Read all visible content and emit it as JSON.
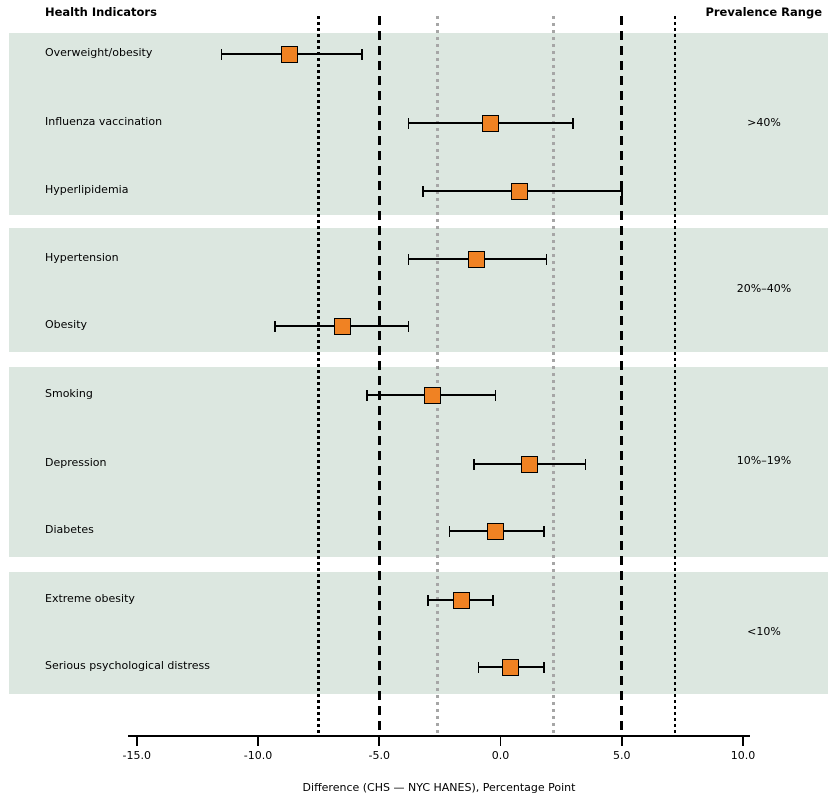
{
  "header": {
    "left": "Health Indicators",
    "right": "Prevalence Range"
  },
  "colors": {
    "band": "#dce7e0",
    "marker_fill": "#f08223",
    "marker_border": "#000000",
    "black_line": "#000000",
    "gray_line": "#a6a6a6"
  },
  "chart_data": {
    "type": "scatter",
    "subtype": "forest-plot-with-error-bars",
    "xlabel": "Difference (CHS — NYC HANES), Percentage Point",
    "xlim": [
      -15.0,
      10.0
    ],
    "x_ticks": [
      -15.0,
      -10.0,
      -5.0,
      0.0,
      5.0,
      10.0
    ],
    "x_tick_labels": [
      "-15.0",
      "-10.0",
      "-5.0",
      "0.0",
      "5.0",
      "10.0"
    ],
    "grid": "off",
    "reference_lines": [
      {
        "value": -7.5,
        "style": "dot-black"
      },
      {
        "value": -5.0,
        "style": "dash-black"
      },
      {
        "value": -2.6,
        "style": "dot-gray"
      },
      {
        "value": 2.2,
        "style": "dot-gray"
      },
      {
        "value": 5.0,
        "style": "dash-black"
      },
      {
        "value": 7.2,
        "style": "dot-black"
      }
    ],
    "groups": [
      {
        "prevalence_range": ">40%",
        "indicators": [
          {
            "label": "Overweight/obesity",
            "estimate": -8.7,
            "ci_low": -11.5,
            "ci_high": -5.7
          },
          {
            "label": "Influenza vaccination",
            "estimate": -0.4,
            "ci_low": -3.8,
            "ci_high": 3.0
          },
          {
            "label": "Hyperlipidemia",
            "estimate": 0.8,
            "ci_low": -3.2,
            "ci_high": 5.0
          }
        ]
      },
      {
        "prevalence_range": "20%–40%",
        "indicators": [
          {
            "label": "Hypertension",
            "estimate": -1.0,
            "ci_low": -3.8,
            "ci_high": 1.9
          },
          {
            "label": "Obesity",
            "estimate": -6.5,
            "ci_low": -9.3,
            "ci_high": -3.8
          }
        ]
      },
      {
        "prevalence_range": "10%–19%",
        "indicators": [
          {
            "label": "Smoking",
            "estimate": -2.8,
            "ci_low": -5.5,
            "ci_high": -0.2
          },
          {
            "label": "Depression",
            "estimate": 1.2,
            "ci_low": -1.1,
            "ci_high": 3.5
          },
          {
            "label": "Diabetes",
            "estimate": -0.2,
            "ci_low": -2.1,
            "ci_high": 1.8
          }
        ]
      },
      {
        "prevalence_range": "<10%",
        "indicators": [
          {
            "label": "Extreme obesity",
            "estimate": -1.6,
            "ci_low": -3.0,
            "ci_high": -0.3
          },
          {
            "label": "Serious psychological distress",
            "estimate": 0.4,
            "ci_low": -0.9,
            "ci_high": 1.8
          }
        ]
      }
    ]
  }
}
